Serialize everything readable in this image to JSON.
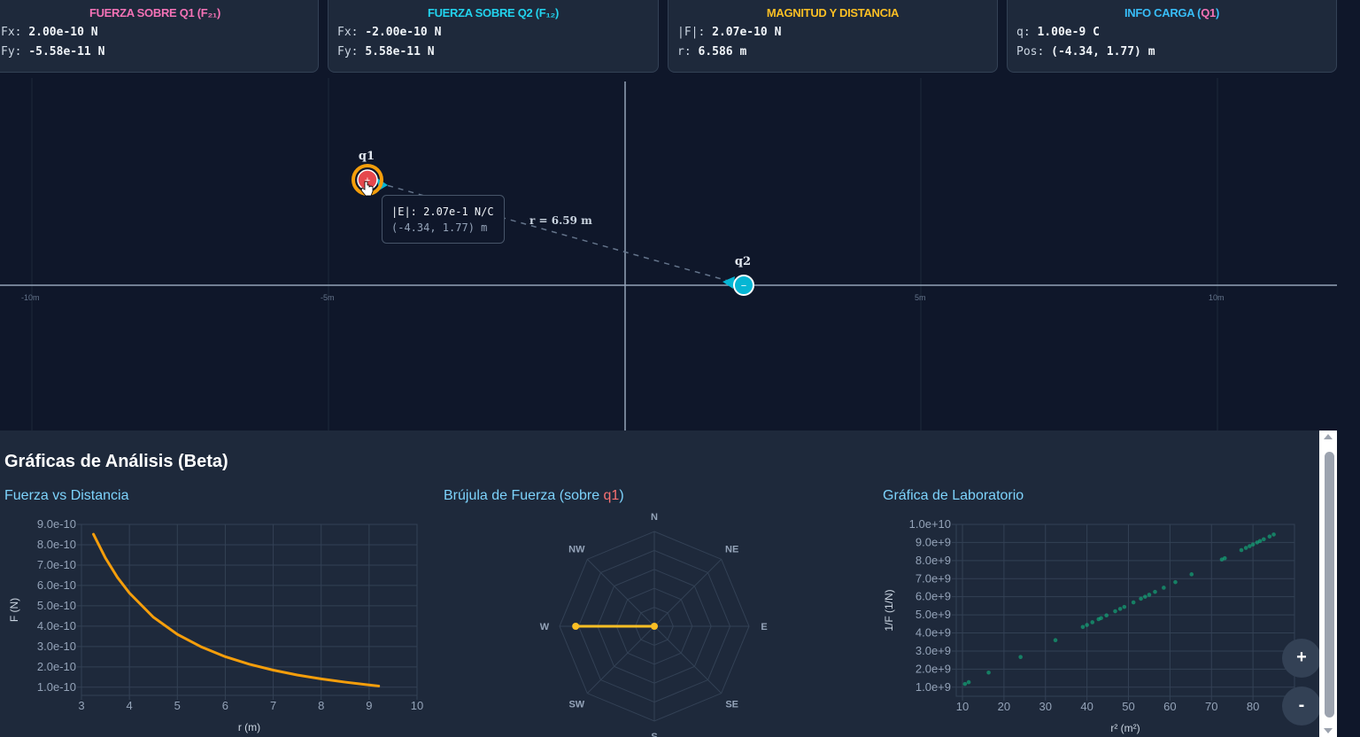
{
  "cards": [
    {
      "title": "FUERZA SOBRE Q1 (F₂₁)",
      "color": "#f472b6",
      "rows": [
        [
          "Fx:",
          "2.00e-10 N"
        ],
        [
          "Fy:",
          "-5.58e-11 N"
        ]
      ]
    },
    {
      "title": "FUERZA SOBRE Q2 (F₁₂)",
      "color": "#22d3ee",
      "rows": [
        [
          "Fx:",
          "-2.00e-10 N"
        ],
        [
          "Fy:",
          "5.58e-11 N"
        ]
      ]
    },
    {
      "title": "MAGNITUD Y DISTANCIA",
      "color": "#fbbf24",
      "rows": [
        [
          "|F|:",
          "2.07e-10 N"
        ],
        [
          "r:",
          "6.586 m"
        ]
      ]
    },
    {
      "title_main": "INFO CARGA (",
      "title_q": "Q1",
      "title_end": ")",
      "color": "#38bdf8",
      "rows": [
        [
          "q:",
          "1.00e-9 C"
        ],
        [
          "Pos:",
          "(-4.34, 1.77) m"
        ]
      ]
    }
  ],
  "canvas": {
    "axis_labels": [
      "-10m",
      "-5m",
      "5m",
      "10m"
    ],
    "q1": {
      "label": "q1",
      "x": -4.34,
      "y": 1.77,
      "sign": "+",
      "color": "#e5484d"
    },
    "q2": {
      "label": "q2",
      "x": 2.0,
      "y": 0.0,
      "sign": "−",
      "color": "#06b6d4"
    },
    "distance_label": "r = 6.59 m",
    "tooltip": {
      "line1": "|E|: 2.07e-1 N/C",
      "line2": "(-4.34, 1.77) m"
    }
  },
  "panel": {
    "title": "Gráficas de Análisis (Beta)",
    "force_title": "Fuerza vs Distancia",
    "compass_title": "Brújula de Fuerza (sobre ",
    "compass_q": "q1",
    "compass_end": ")",
    "lab_title": "Gráfica de Laboratorio"
  },
  "zoom": {
    "plus": "+",
    "minus": "-"
  },
  "chart_data": [
    {
      "type": "line",
      "xlabel": "r (m)",
      "ylabel": "F (N)",
      "xlim": [
        3,
        10
      ],
      "ylim": [
        6e-11,
        9e-10
      ],
      "xticks": [
        "3",
        "4",
        "5",
        "6",
        "7",
        "8",
        "9",
        "10"
      ],
      "yticks": [
        "9.0e-10",
        "8.0e-10",
        "7.0e-10",
        "6.0e-10",
        "5.0e-10",
        "4.0e-10",
        "3.0e-10",
        "2.0e-10",
        "1.0e-10"
      ],
      "color": "#f59e0b",
      "x": [
        3.25,
        3.5,
        3.75,
        4,
        4.5,
        5,
        5.5,
        6,
        6.5,
        7,
        7.5,
        8,
        8.5,
        9,
        9.2
      ],
      "y": [
        8.52e-10,
        7.35e-10,
        6.4e-10,
        5.63e-10,
        4.44e-10,
        3.6e-10,
        2.98e-10,
        2.5e-10,
        2.13e-10,
        1.84e-10,
        1.6e-10,
        1.41e-10,
        1.25e-10,
        1.11e-10,
        1.06e-10
      ]
    },
    {
      "type": "radar",
      "labels": [
        "N",
        "NE",
        "E",
        "SE",
        "S",
        "SW",
        "W",
        "NW"
      ],
      "values": [
        0,
        0,
        0,
        0,
        0,
        0,
        0.83,
        0
      ],
      "color": "#fbbf24"
    },
    {
      "type": "scatter",
      "xlabel": "r² (m²)",
      "ylabel": "1/F (1/N)",
      "xlim": [
        8.5,
        90
      ],
      "ylim": [
        500000000.0,
        10000000000.0
      ],
      "xticks": [
        "10",
        "20",
        "30",
        "40",
        "50",
        "60",
        "70",
        "80"
      ],
      "yticks": [
        "1.0e+10",
        "9.0e+9",
        "8.0e+9",
        "7.0e+9",
        "6.0e+9",
        "5.0e+9",
        "4.0e+9",
        "3.0e+9",
        "2.0e+9",
        "1.0e+9"
      ],
      "color": "#10b981",
      "x": [
        10.6,
        11.5,
        16.3,
        24,
        32.4,
        39,
        40,
        41.3,
        42.8,
        43.4,
        44.7,
        46.8,
        48,
        49,
        51.2,
        53,
        54,
        55,
        56.4,
        58.5,
        61.3,
        65.2,
        72.5,
        73.2,
        77.2,
        78.3,
        79.2,
        80,
        81,
        81.7,
        82.6,
        84,
        85
      ],
      "y": [
        1180000000.0,
        1280000000.0,
        1810000000.0,
        2670000000.0,
        3600000000.0,
        4330000000.0,
        4440000000.0,
        4590000000.0,
        4760000000.0,
        4820000000.0,
        4970000000.0,
        5200000000.0,
        5330000000.0,
        5440000000.0,
        5690000000.0,
        5890000000.0,
        6000000000.0,
        6110000000.0,
        6270000000.0,
        6500000000.0,
        6810000000.0,
        7240000000.0,
        8060000000.0,
        8130000000.0,
        8580000000.0,
        8700000000.0,
        8800000000.0,
        8890000000.0,
        9000000000.0,
        9080000000.0,
        9180000000.0,
        9330000000.0,
        9440000000.0
      ]
    }
  ]
}
